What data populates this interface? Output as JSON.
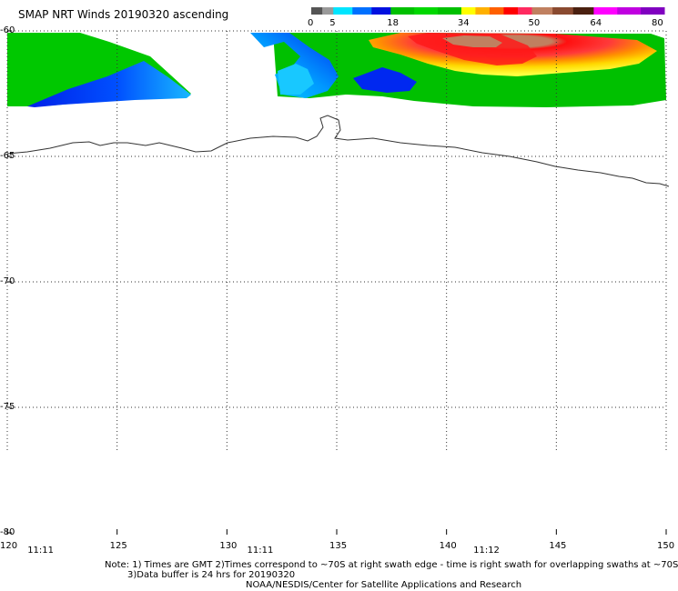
{
  "title": "SMAP NRT Winds 20190320 ascending",
  "colorbar": {
    "tick_labels": [
      "0",
      "5",
      "18",
      "34",
      "50",
      "64",
      "80"
    ],
    "tick_values": [
      0,
      5,
      18,
      34,
      50,
      64,
      80
    ],
    "segments": [
      {
        "from": 0,
        "to": 5,
        "colors": [
          "#555555",
          "#9a9a9a"
        ]
      },
      {
        "from": 5,
        "to": 18,
        "colors": [
          "#00e5ff",
          "#0070ff",
          "#0010e0"
        ]
      },
      {
        "from": 18,
        "to": 34,
        "colors": [
          "#00c000",
          "#00d800",
          "#00c000"
        ]
      },
      {
        "from": 34,
        "to": 50,
        "colors": [
          "#ffff00",
          "#ffb000",
          "#ff6000",
          "#ff0000",
          "#ff2a60"
        ]
      },
      {
        "from": 50,
        "to": 64,
        "colors": [
          "#c08060",
          "#8a4a30",
          "#4a2010"
        ]
      },
      {
        "from": 64,
        "to": 80,
        "colors": [
          "#ff00ff",
          "#c000e0",
          "#8000c0"
        ]
      }
    ]
  },
  "chart_data": {
    "type": "map",
    "lon_ticks": [
      120,
      125,
      130,
      135,
      140,
      145,
      150
    ],
    "lat_ticks": [
      -60,
      -65,
      -70,
      -75,
      -80
    ],
    "lon_labels": [
      "120",
      "125",
      "130",
      "135",
      "140",
      "145",
      "150"
    ],
    "lat_labels": [
      "-60",
      "-65",
      "-70",
      "-75",
      "-80"
    ],
    "lon_range": [
      120,
      150
    ],
    "lat_range": [
      -60,
      -80
    ],
    "grid": true,
    "time_labels": [
      {
        "lon": 121.5,
        "text": "11:11"
      },
      {
        "lon": 131.5,
        "text": "11:11"
      },
      {
        "lon": 141.8,
        "text": "11:12"
      }
    ]
  },
  "notes": {
    "line1": "Note: 1) Times are GMT 2)Times correspond to ~70S at right swath edge - time is right swath for overlapping swaths at ~70S",
    "line2": "3)Data buffer is 24 hrs for 20190320",
    "line3": "NOAA/NESDIS/Center for Satellite Applications and Research"
  }
}
